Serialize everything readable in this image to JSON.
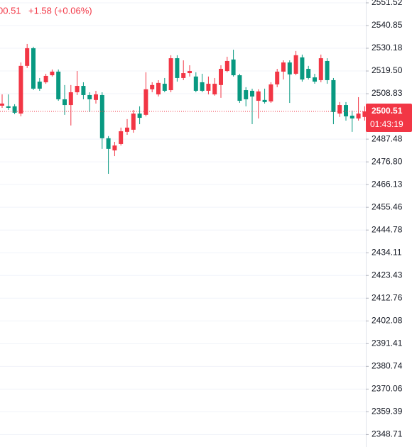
{
  "chart_data": {
    "type": "candlestick",
    "header_price": "00.51",
    "header_change": "+1.58 (+0.06%)",
    "last_price": 2500.51,
    "countdown": "01:43:19",
    "up_color": "#f23645",
    "down_color": "#089981",
    "grid": true,
    "ylim": [
      2342.85,
      2552.85
    ],
    "yticks": [
      2551.52,
      2540.85,
      2530.18,
      {
        "value": 2519.5,
        "label": "2519.50"
      },
      2508.83,
      2487.48,
      {
        "value": 2476.8,
        "label": "2476.80"
      },
      2466.13,
      2455.46,
      2444.78,
      2434.11,
      2423.43,
      2412.76,
      2402.08,
      2391.41,
      2380.74,
      2370.06,
      2359.39,
      2348.71
    ],
    "open": [
      2503.2,
      2502.9,
      2502.9,
      2499.5,
      2521.9,
      2530.2,
      2514.5,
      2514.2,
      2517.5,
      2519.2,
      2506.2,
      2503.5,
      2509.5,
      2512.5,
      2508.2,
      2505.9,
      2508.2,
      2487.9,
      2482.2,
      2485.2,
      2490.9,
      2491.9,
      2499.5,
      2498.9,
      2510.9,
      2508.5,
      2513.5,
      2510.5,
      2525.5,
      2516.2,
      2518.5,
      2516.9,
      2514.2,
      2510.2,
      2508.5,
      2512.9,
      2519.5,
      2524.9,
      2517.5,
      2510.5,
      2510.2,
      2505.5,
      2505.9,
      2505.2,
      2513.2,
      2519.2,
      2523.5,
      2518.2,
      2525.9,
      2520.5,
      2516.5,
      2515.2,
      2524.2,
      2515.2,
      2499.5,
      2503.5,
      2498.5,
      2497.2,
      2497.9
    ],
    "high": [
      2508.5,
      2508.5,
      2503.9,
      2523.5,
      2532.2,
      2530.9,
      2516.2,
      2518.2,
      2520.2,
      2520.2,
      2512.9,
      2512.9,
      2519.5,
      2514.2,
      2509.5,
      2510.2,
      2509.5,
      2488.9,
      2486.2,
      2492.9,
      2496.9,
      2501.2,
      2502.9,
      2518.9,
      2514.2,
      2515.2,
      2516.2,
      2526.9,
      2526.9,
      2524.5,
      2522.2,
      2518.9,
      2518.2,
      2516.9,
      2516.2,
      2522.2,
      2526.2,
      2529.5,
      2518.2,
      2511.9,
      2511.2,
      2510.9,
      2511.2,
      2514.2,
      2520.5,
      2524.5,
      2524.5,
      2528.9,
      2527.2,
      2521.9,
      2518.2,
      2527.2,
      2525.5,
      2516.2,
      2504.9,
      2504.9,
      2500.9,
      2507.2,
      2502.9
    ],
    "low": [
      2502.2,
      2501.2,
      2499.2,
      2498.2,
      2520.9,
      2510.5,
      2510.2,
      2513.5,
      2516.9,
      2505.5,
      2498.9,
      2493.9,
      2508.2,
      2506.2,
      2500.2,
      2504.2,
      2482.9,
      2471.2,
      2479.5,
      2484.5,
      2489.5,
      2490.5,
      2494.5,
      2498.2,
      2509.5,
      2507.5,
      2509.5,
      2509.5,
      2514.5,
      2515.2,
      2516.9,
      2509.5,
      2509.5,
      2508.5,
      2507.9,
      2506.9,
      2518.9,
      2516.9,
      2504.5,
      2502.9,
      2494.5,
      2497.2,
      2504.2,
      2504.5,
      2511.9,
      2515.5,
      2504.5,
      2517.5,
      2514.5,
      2515.5,
      2513.5,
      2514.2,
      2513.5,
      2494.5,
      2497.9,
      2496.2,
      2490.9,
      2496.2,
      2496.2
    ],
    "close": [
      2504.2,
      2502.2,
      2499.9,
      2521.9,
      2530.2,
      2511.2,
      2511.2,
      2517.2,
      2519.2,
      2506.2,
      2503.5,
      2509.5,
      2512.5,
      2508.2,
      2506.2,
      2508.5,
      2487.9,
      2482.9,
      2484.5,
      2491.2,
      2492.9,
      2499.5,
      2497.5,
      2510.9,
      2512.9,
      2513.9,
      2510.2,
      2525.5,
      2516.2,
      2518.5,
      2519.5,
      2510.2,
      2510.2,
      2513.5,
      2513.5,
      2520.5,
      2524.2,
      2517.5,
      2505.5,
      2506.2,
      2507.5,
      2509.9,
      2504.9,
      2513.2,
      2519.2,
      2523.5,
      2517.9,
      2526.9,
      2515.5,
      2516.2,
      2514.5,
      2525.5,
      2515.2,
      2500.2,
      2503.5,
      2498.2,
      2497.2,
      2499.5,
      2500.51
    ]
  }
}
